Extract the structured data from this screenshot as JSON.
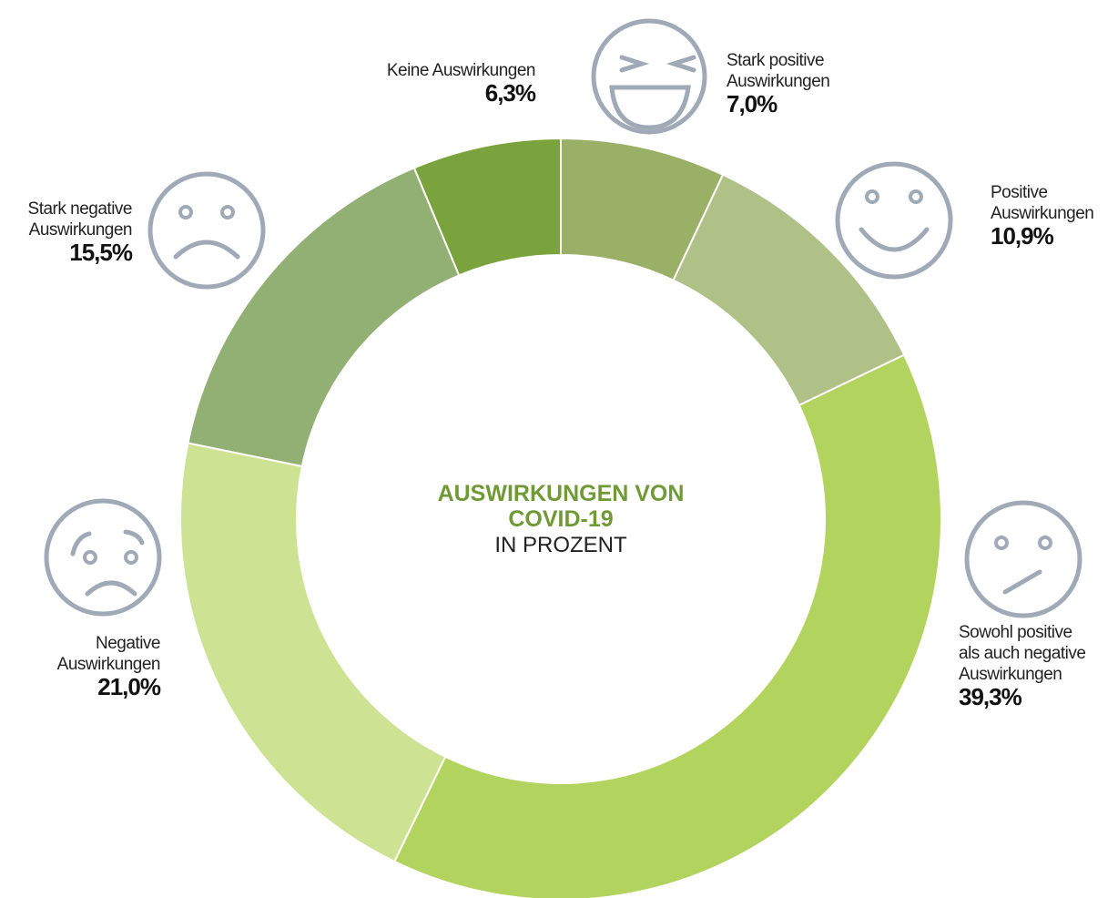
{
  "chart_data": {
    "type": "donut",
    "title": "AUSWIRKUNGEN VON\nCOVID-19",
    "subtitle": "IN PROZENT",
    "categories": [
      "Stark positive\nAuswirkungen",
      "Positive\nAuswirkungen",
      "Sowohl positive\nals auch negative\nAuswirkungen",
      "Negative\nAuswirkungen",
      "Stark negative\nAuswirkungen",
      "Keine Auswirkungen"
    ],
    "values": [
      7.0,
      10.9,
      39.3,
      21.0,
      15.5,
      6.3
    ],
    "value_labels": [
      "7,0%",
      "10,9%",
      "39,3%",
      "21,0%",
      "15,5%",
      "6,3%"
    ],
    "colors": [
      "#9ab067",
      "#afc187",
      "#b2d45e",
      "#cde293",
      "#93b074",
      "#7aa33d"
    ],
    "title_color": "#6f9a35"
  }
}
